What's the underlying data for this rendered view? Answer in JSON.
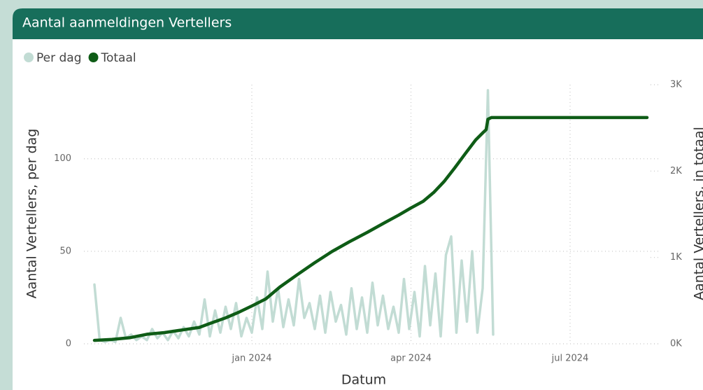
{
  "chart_data": {
    "type": "line",
    "title": "Aantal aanmeldingen Vertellers",
    "xlabel": "Datum",
    "ylabel": "Aantal Vertellers, per dag",
    "y2label": "Aantal Vertellers, in totaal",
    "xlim": [
      -6,
      324
    ],
    "xticks": [
      {
        "value": 90,
        "label": "jan 2024"
      },
      {
        "value": 181,
        "label": "apr 2024"
      },
      {
        "value": 272,
        "label": "jul 2024"
      }
    ],
    "ylim": [
      0,
      140
    ],
    "yticks": [
      0,
      50,
      100
    ],
    "y2lim": [
      0,
      3000
    ],
    "y2ticks": [
      {
        "value": 0,
        "label": "0K"
      },
      {
        "value": 1000,
        "label": "1K"
      },
      {
        "value": 2000,
        "label": "2K"
      },
      {
        "value": 3000,
        "label": "3K"
      }
    ],
    "grid": true,
    "legend": "top-left",
    "series": [
      {
        "name": "Per dag",
        "color": "#c2dcd4",
        "x": [
          0,
          3,
          6,
          9,
          12,
          15,
          18,
          21,
          24,
          27,
          30,
          33,
          36,
          39,
          42,
          45,
          48,
          51,
          54,
          57,
          60,
          63,
          66,
          69,
          72,
          75,
          78,
          81,
          84,
          87,
          90,
          93,
          96,
          99,
          102,
          105,
          108,
          111,
          114,
          117,
          120,
          123,
          126,
          129,
          132,
          135,
          138,
          141,
          144,
          147,
          150,
          153,
          156,
          159,
          162,
          165,
          168,
          171,
          174,
          177,
          180,
          183,
          186,
          189,
          192,
          195,
          198,
          201,
          204,
          207,
          210,
          213,
          216,
          219,
          222,
          225,
          228
        ],
        "values": [
          32,
          2,
          1,
          2,
          1,
          14,
          3,
          5,
          2,
          4,
          2,
          8,
          3,
          6,
          2,
          7,
          3,
          9,
          4,
          12,
          5,
          24,
          4,
          18,
          6,
          20,
          8,
          22,
          4,
          14,
          6,
          25,
          8,
          39,
          12,
          30,
          9,
          24,
          10,
          35,
          14,
          22,
          8,
          26,
          6,
          28,
          12,
          21,
          5,
          30,
          8,
          25,
          6,
          33,
          10,
          26,
          8,
          20,
          6,
          35,
          8,
          28,
          4,
          42,
          10,
          38,
          4,
          48,
          58,
          6,
          45,
          12,
          50,
          6,
          30,
          137,
          5
        ]
      },
      {
        "name": "Totaal",
        "color": "#0e5c16",
        "axis": "y2",
        "x": [
          0,
          10,
          20,
          30,
          40,
          50,
          60,
          66,
          75,
          83,
          90,
          98,
          106,
          116,
          126,
          136,
          146,
          156,
          166,
          174,
          181,
          188,
          194,
          200,
          206,
          212,
          218,
          222,
          224,
          225,
          227,
          316
        ],
        "values": [
          40,
          50,
          70,
          110,
          130,
          160,
          190,
          235,
          300,
          370,
          438,
          520,
          657,
          800,
          940,
          1070,
          1184,
          1290,
          1403,
          1490,
          1573,
          1650,
          1752,
          1880,
          2036,
          2200,
          2360,
          2441,
          2480,
          2600,
          2620,
          2620
        ]
      }
    ]
  }
}
